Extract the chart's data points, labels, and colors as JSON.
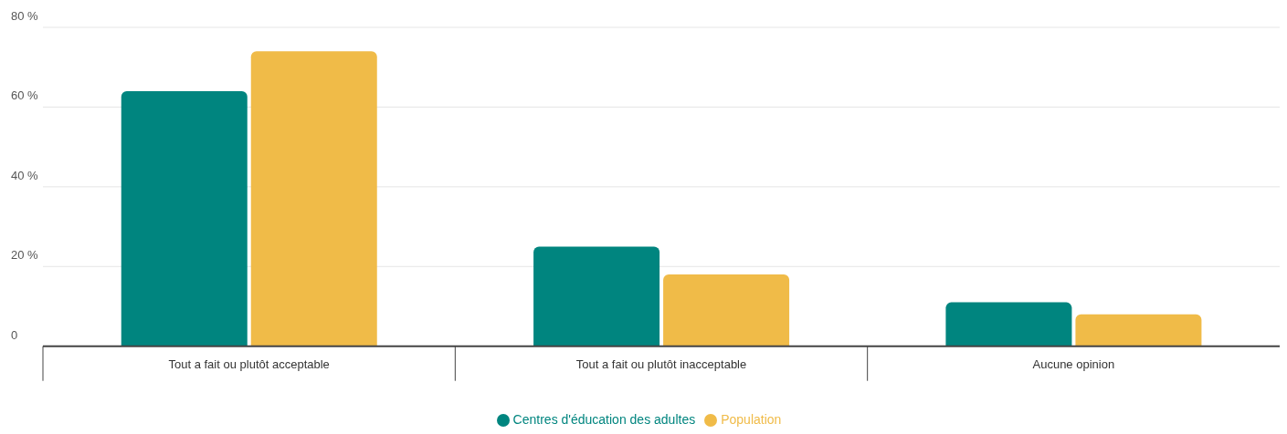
{
  "chart_data": {
    "type": "bar",
    "categories": [
      "Tout a fait ou plutôt acceptable",
      "Tout a fait ou plutôt inacceptable",
      "Aucune opinion"
    ],
    "series": [
      {
        "name": "Centres d'éducation des adultes",
        "color": "#00857f",
        "values": [
          64,
          25,
          11
        ]
      },
      {
        "name": "Population",
        "color": "#f0bb48",
        "values": [
          74,
          18,
          8
        ]
      }
    ],
    "ylim": [
      0,
      80
    ],
    "yticks": [
      {
        "value": 0,
        "label": "0"
      },
      {
        "value": 20,
        "label": "20 %"
      },
      {
        "value": 40,
        "label": "40 %"
      },
      {
        "value": 60,
        "label": "60 %"
      },
      {
        "value": 80,
        "label": "80 %"
      }
    ],
    "grid": "y",
    "legend": "bottom"
  }
}
